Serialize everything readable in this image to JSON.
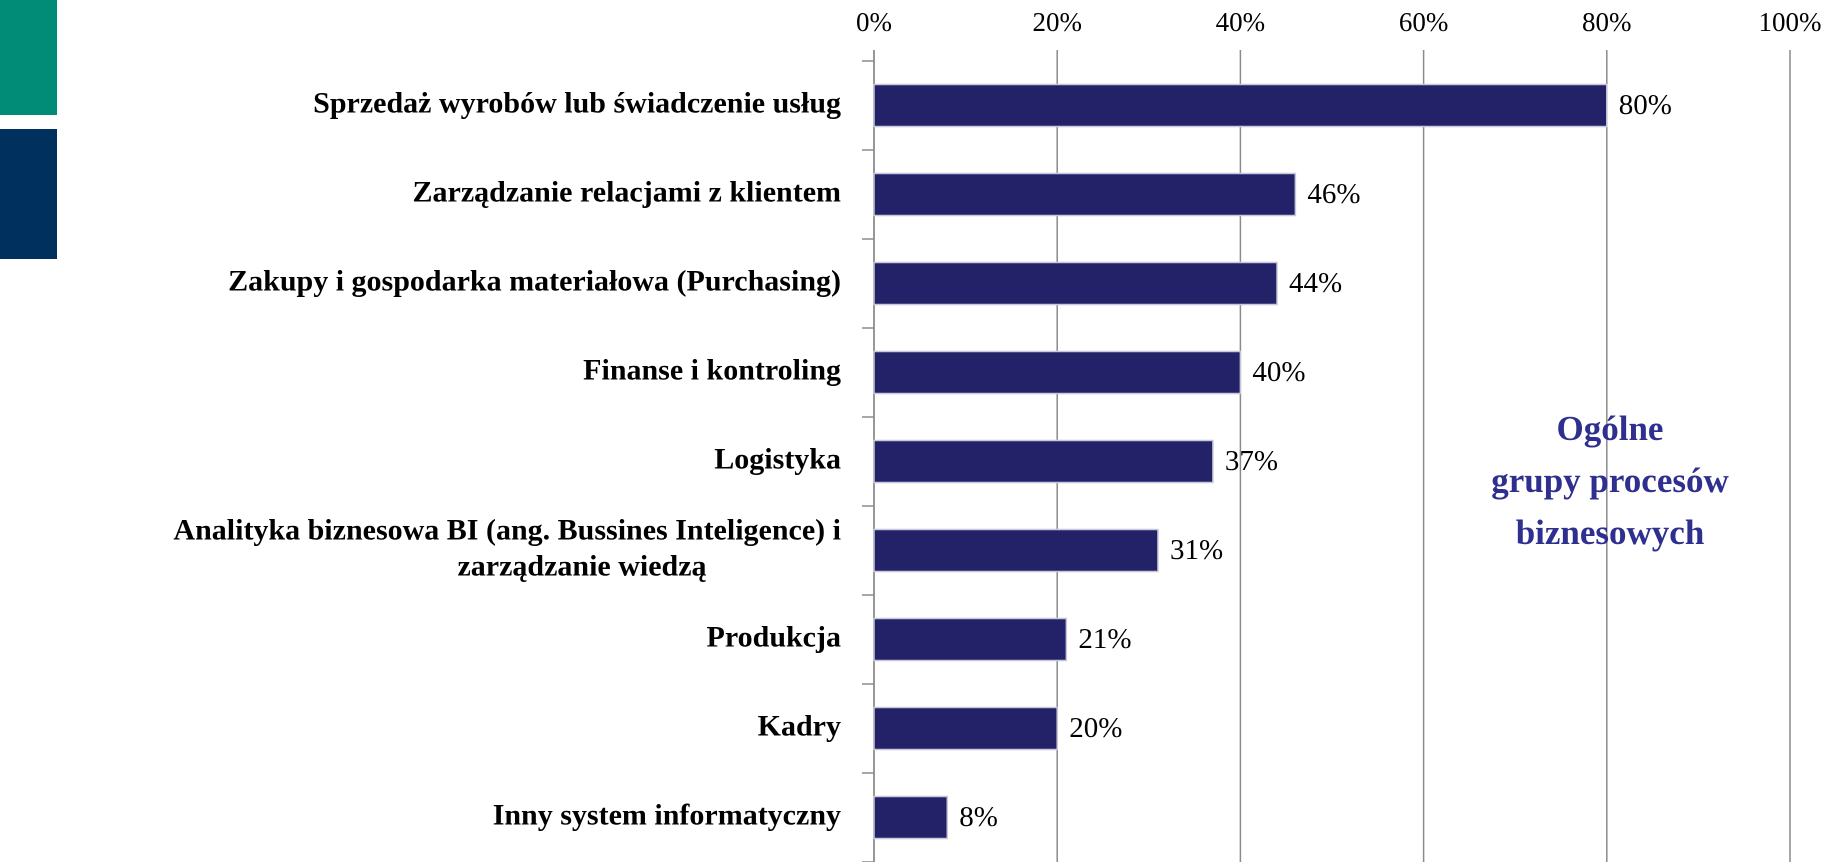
{
  "chart_data": {
    "type": "bar",
    "orientation": "horizontal",
    "categories": [
      "Sprzedaż wyrobów lub świadczenie usług",
      "Zarządzanie relacjami z klientem",
      "Zakupy i gospodarka materiałowa (Purchasing)",
      "Finanse i kontroling",
      "Logistyka",
      "Analityka biznesowa BI (ang. Bussines Inteligence) i\nzarządzanie wiedzą",
      "Produkcja",
      "Kadry",
      "Inny system informatyczny"
    ],
    "values": [
      80,
      46,
      44,
      40,
      37,
      31,
      21,
      20,
      8
    ],
    "value_labels": [
      "80%",
      "46%",
      "44%",
      "40%",
      "37%",
      "31%",
      "21%",
      "20%",
      "8%"
    ],
    "color": "#232268",
    "xlim": [
      0,
      100
    ],
    "xticks": [
      {
        "value": 0,
        "label": "0%"
      },
      {
        "value": 20,
        "label": "20%"
      },
      {
        "value": 40,
        "label": "40%"
      },
      {
        "value": 60,
        "label": "60%"
      },
      {
        "value": 80,
        "label": "80%"
      },
      {
        "value": 100,
        "label": "100%"
      }
    ],
    "grid": true,
    "annotation": {
      "lines": [
        "Ogólne",
        "grupy procesów",
        "biznesowych"
      ],
      "color": "#2e2f8f"
    }
  }
}
